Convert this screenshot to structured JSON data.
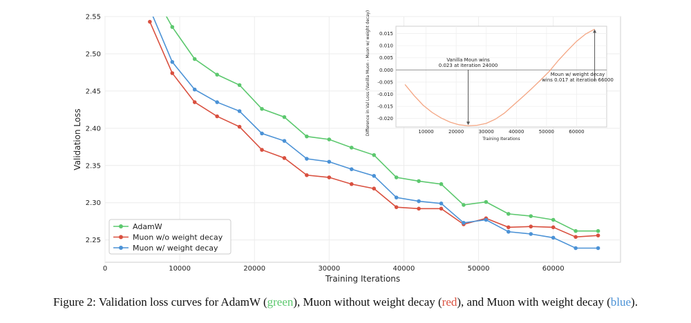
{
  "chart_data": [
    {
      "type": "line",
      "xlabel": "Training Iterations",
      "ylabel": "Validation Loss",
      "xlim": [
        0,
        69000
      ],
      "ylim": [
        2.22,
        2.55
      ],
      "xticks": [
        0,
        10000,
        20000,
        30000,
        40000,
        50000,
        60000
      ],
      "xtick_labels": [
        "0",
        "10000",
        "20000",
        "30000",
        "40000",
        "50000",
        "60000"
      ],
      "yticks": [
        2.25,
        2.3,
        2.35,
        2.4,
        2.45,
        2.5,
        2.55
      ],
      "ytick_labels": [
        "2.25",
        "2.30",
        "2.35",
        "2.40",
        "2.45",
        "2.50",
        "2.55"
      ],
      "grid": true,
      "legend_position": "bottom-left",
      "x": [
        6000,
        9000,
        12000,
        15000,
        18000,
        21000,
        24000,
        27000,
        30000,
        33000,
        36000,
        39000,
        42000,
        45000,
        48000,
        51000,
        54000,
        57000,
        60000,
        63000,
        66000
      ],
      "series": [
        {
          "name": "AdamW",
          "color": "#5cc86e",
          "values": [
            2.59,
            2.536,
            2.493,
            2.472,
            2.458,
            2.426,
            2.415,
            2.389,
            2.385,
            2.374,
            2.364,
            2.334,
            2.329,
            2.325,
            2.297,
            2.301,
            2.285,
            2.282,
            2.277,
            2.262,
            2.262
          ]
        },
        {
          "name": "Muon w/o weight decay",
          "color": "#d9503f",
          "values": [
            2.543,
            2.474,
            2.435,
            2.416,
            2.402,
            2.371,
            2.36,
            2.337,
            2.334,
            2.325,
            2.319,
            2.294,
            2.292,
            2.292,
            2.271,
            2.279,
            2.267,
            2.268,
            2.267,
            2.254,
            2.256
          ]
        },
        {
          "name": "Muon w/ weight decay",
          "color": "#4b92d6",
          "values": [
            2.56,
            2.489,
            2.452,
            2.435,
            2.423,
            2.393,
            2.383,
            2.359,
            2.355,
            2.345,
            2.336,
            2.307,
            2.302,
            2.299,
            2.273,
            2.277,
            2.261,
            2.258,
            2.253,
            2.239,
            2.239
          ]
        }
      ]
    },
    {
      "type": "line",
      "xlabel": "Training Iterations",
      "ylabel": "Difference in Val Loss (Vanilla Muon - Muon w/ weight decay)",
      "xlim": [
        0,
        70000
      ],
      "ylim": [
        -0.0235,
        0.018
      ],
      "xticks": [
        10000,
        20000,
        30000,
        40000,
        50000,
        60000
      ],
      "xtick_labels": [
        "10000",
        "20000",
        "30000",
        "40000",
        "50000",
        "60000"
      ],
      "yticks": [
        0.015,
        0.01,
        0.005,
        0.0,
        -0.005,
        -0.01,
        -0.015,
        -0.02
      ],
      "ytick_labels": [
        "0.015",
        "0.010",
        "0.005",
        "0.000",
        "-0.005",
        "-0.010",
        "-0.015",
        "-0.020"
      ],
      "grid": true,
      "series": [
        {
          "color": "#f4a582",
          "x": [
            3000,
            6000,
            9000,
            12000,
            15000,
            18000,
            21000,
            24000,
            27000,
            30000,
            33000,
            36000,
            39000,
            42000,
            45000,
            48000,
            51000,
            54000,
            57000,
            60000,
            63000,
            66000
          ],
          "values": [
            -0.006,
            -0.0105,
            -0.0145,
            -0.0175,
            -0.0198,
            -0.0215,
            -0.0226,
            -0.023,
            -0.0228,
            -0.022,
            -0.0203,
            -0.0178,
            -0.0145,
            -0.0112,
            -0.0078,
            -0.0042,
            -0.0005,
            0.004,
            0.008,
            0.0118,
            0.0148,
            0.0168
          ]
        }
      ],
      "annotations": [
        {
          "line1": "Vanilla Moun wins",
          "line2": "0.023 at iteration 24000",
          "at": [
            24000,
            -0.023
          ]
        },
        {
          "line1": "Moun w/ weight decay",
          "line2": "wins 0.017 at iteration 66000",
          "at": [
            66000,
            0.017
          ]
        }
      ]
    }
  ],
  "caption": {
    "prefix": "Figure 2: Validation loss curves for AdamW (",
    "green": "green",
    "mid1": "), Muon without weight decay (",
    "red": "red",
    "mid2": "), and Muon with weight decay (",
    "blue": "blue",
    "suffix": ")."
  }
}
